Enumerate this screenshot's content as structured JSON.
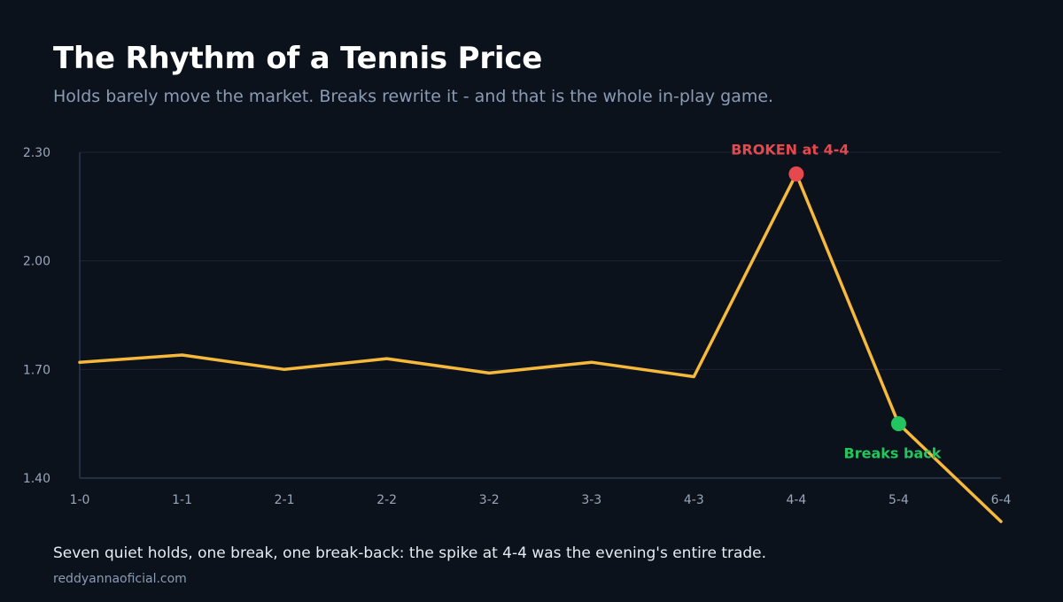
{
  "header": {
    "title": "The Rhythm of a Tennis Price",
    "subtitle": "Holds barely move the market. Breaks rewrite it - and that is the whole in-play game."
  },
  "footer": {
    "note": "Seven quiet holds, one break, one break-back: the spike at 4-4 was the evening's entire trade.",
    "source": "reddyannaoficial.com"
  },
  "chart_data": {
    "type": "line",
    "categories": [
      "1-0",
      "1-1",
      "2-1",
      "2-2",
      "3-2",
      "3-3",
      "4-3",
      "4-4",
      "5-4",
      "6-4"
    ],
    "series": [
      {
        "values": [
          1.72,
          1.74,
          1.7,
          1.73,
          1.69,
          1.72,
          1.68,
          2.24,
          1.55,
          1.28
        ],
        "color": "#f6b93b"
      }
    ],
    "ylim": [
      1.4,
      2.3
    ],
    "yticks": [
      "1.40",
      "1.70",
      "2.00",
      "2.30"
    ],
    "grid": true,
    "annotations": [
      {
        "category": "4-4",
        "value": 2.24,
        "text": "BROKEN at 4-4",
        "color": "#e5484d",
        "position": "above"
      },
      {
        "category": "5-4",
        "value": 1.55,
        "text": "Breaks back",
        "color": "#22c55e",
        "position": "below"
      }
    ]
  }
}
